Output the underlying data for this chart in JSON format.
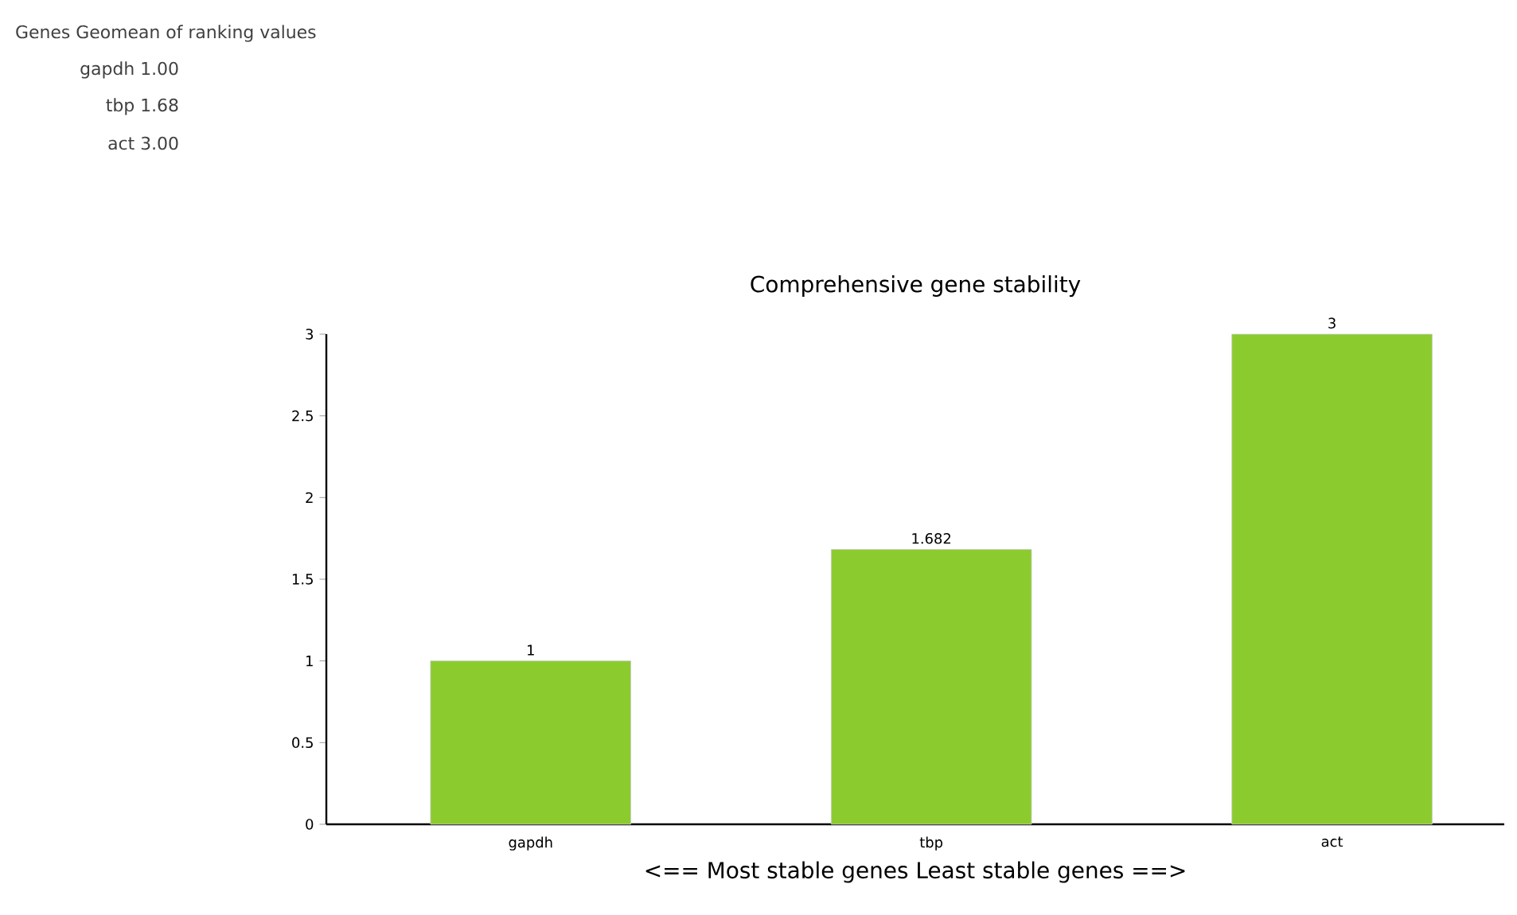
{
  "chart_data": {
    "type": "bar",
    "title": "Comprehensive gene stability",
    "xlabel": "<== Most stable genes    Least stable genes ==>",
    "annotations": [
      "Genes Geomean of ranking values",
      "gapdh 1.00",
      "tbp 1.68",
      "act 3.00"
    ],
    "categories": [
      "gapdh",
      "tbp",
      "act"
    ],
    "values": [
      1,
      1.682,
      3
    ],
    "color": "#8ccb2e",
    "data_labels": true,
    "ylim": [
      0,
      3
    ],
    "yticks": [
      0,
      0.5,
      1,
      1.5,
      2,
      2.5,
      3
    ],
    "grid": false
  }
}
